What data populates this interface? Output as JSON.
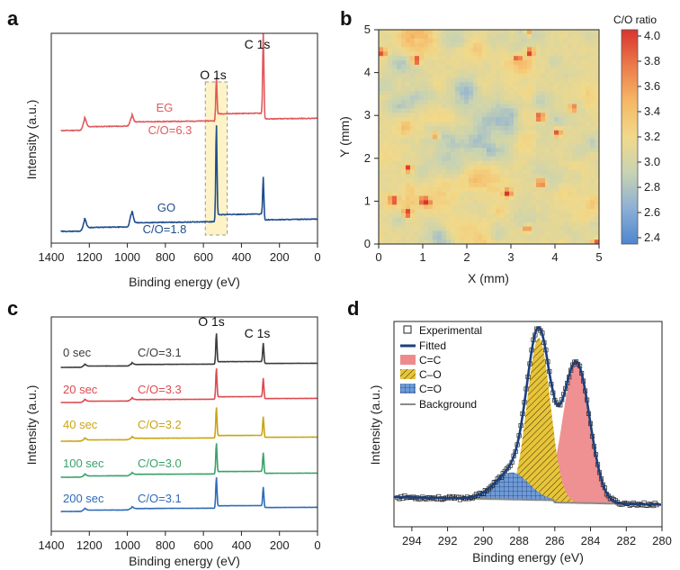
{
  "panel_labels": [
    "a",
    "b",
    "c",
    "d"
  ],
  "colors": {
    "EG": "#e05a5e",
    "GO": "#1f4e8c",
    "t0": "#3c3c3c",
    "t20": "#de4a50",
    "t40": "#c9a514",
    "t100": "#39a26a",
    "t200": "#2f6bb8",
    "CC_fill": "#ee8a8c",
    "CO_fill": "#e8c43a",
    "COd_fill": "#6f9bd6",
    "fitted": "#1c3f7a",
    "background": "#8a8a8a",
    "highlight": "#fdf3c7"
  },
  "chart_data": [
    {
      "panel": "a",
      "type": "line",
      "xlabel": "Binding energy (eV)",
      "ylabel": "Intensity (a.u.)",
      "xlim": [
        1400,
        0
      ],
      "xticks": [
        1400,
        1200,
        1000,
        800,
        600,
        400,
        200,
        0
      ],
      "peak_labels": [
        "O 1s",
        "C 1s"
      ],
      "peak_positions": [
        532,
        285
      ],
      "series": [
        {
          "name": "EG",
          "ratio_label": "C/O=6.3",
          "color_key": "EG",
          "peaks": [
            {
              "x": 1225,
              "h": 0.08
            },
            {
              "x": 978,
              "h": 0.07
            },
            {
              "x": 532,
              "h": 0.33
            },
            {
              "x": 285,
              "h": 0.7
            }
          ]
        },
        {
          "name": "GO",
          "ratio_label": "C/O=1.8",
          "color_key": "GO",
          "peaks": [
            {
              "x": 1225,
              "h": 0.08
            },
            {
              "x": 978,
              "h": 0.11
            },
            {
              "x": 532,
              "h": 0.8
            },
            {
              "x": 285,
              "h": 0.32
            }
          ]
        }
      ],
      "highlight_range": [
        590,
        475
      ]
    },
    {
      "panel": "b",
      "type": "heatmap",
      "xlabel": "X (mm)",
      "ylabel": "Y (mm)",
      "xlim": [
        0,
        5
      ],
      "ylim": [
        0,
        5
      ],
      "xticks": [
        0,
        1,
        2,
        3,
        4,
        5
      ],
      "yticks": [
        0,
        1,
        2,
        3,
        4,
        5
      ],
      "colorbar_title": "C/O ratio",
      "colorbar_ticks": [
        "4.0",
        "3.8",
        "3.6",
        "3.4",
        "3.2",
        "3.0",
        "2.8",
        "2.6",
        "2.4"
      ],
      "value_range": [
        2.35,
        4.05
      ],
      "colormap": [
        "#4e86cf",
        "#8cb0d6",
        "#c8d3b2",
        "#f1d98a",
        "#f5b866",
        "#ec7a4a",
        "#d9342f"
      ]
    },
    {
      "panel": "c",
      "type": "line",
      "xlabel": "Binding energy (eV)",
      "ylabel": "Intensity (a.u.)",
      "xlim": [
        1400,
        0
      ],
      "xticks": [
        1400,
        1200,
        1000,
        800,
        600,
        400,
        200,
        0
      ],
      "peak_labels": [
        "O 1s",
        "C 1s"
      ],
      "peak_positions": [
        532,
        285
      ],
      "series": [
        {
          "name": "0 sec",
          "ratio_label": "C/O=3.1",
          "color_key": "t0"
        },
        {
          "name": "20 sec",
          "ratio_label": "C/O=3.3",
          "color_key": "t20"
        },
        {
          "name": "40 sec",
          "ratio_label": "C/O=3.2",
          "color_key": "t40"
        },
        {
          "name": "100 sec",
          "ratio_label": "C/O=3.0",
          "color_key": "t100"
        },
        {
          "name": "200 sec",
          "ratio_label": "C/O=3.1",
          "color_key": "t200"
        }
      ]
    },
    {
      "panel": "d",
      "type": "area",
      "xlabel": "Binding energy (eV)",
      "ylabel": "Intensity (a.u.)",
      "xlim": [
        295,
        280
      ],
      "xticks": [
        294,
        292,
        290,
        288,
        286,
        284,
        282,
        280
      ],
      "legend": [
        "Experimental",
        "Fitted",
        "C=C",
        "C–O",
        "C=O",
        "Background"
      ],
      "components": [
        {
          "name": "C=C",
          "center": 284.8,
          "sigma": 0.75,
          "amp": 0.78,
          "color_key": "CC_fill"
        },
        {
          "name": "C–O",
          "center": 286.9,
          "sigma": 0.65,
          "amp": 0.9,
          "color_key": "CO_fill"
        },
        {
          "name": "C=O",
          "center": 288.4,
          "sigma": 0.95,
          "amp": 0.15,
          "color_key": "COd_fill"
        }
      ],
      "background_line": [
        [
          295,
          0.07
        ],
        [
          280,
          0.03
        ]
      ]
    }
  ]
}
